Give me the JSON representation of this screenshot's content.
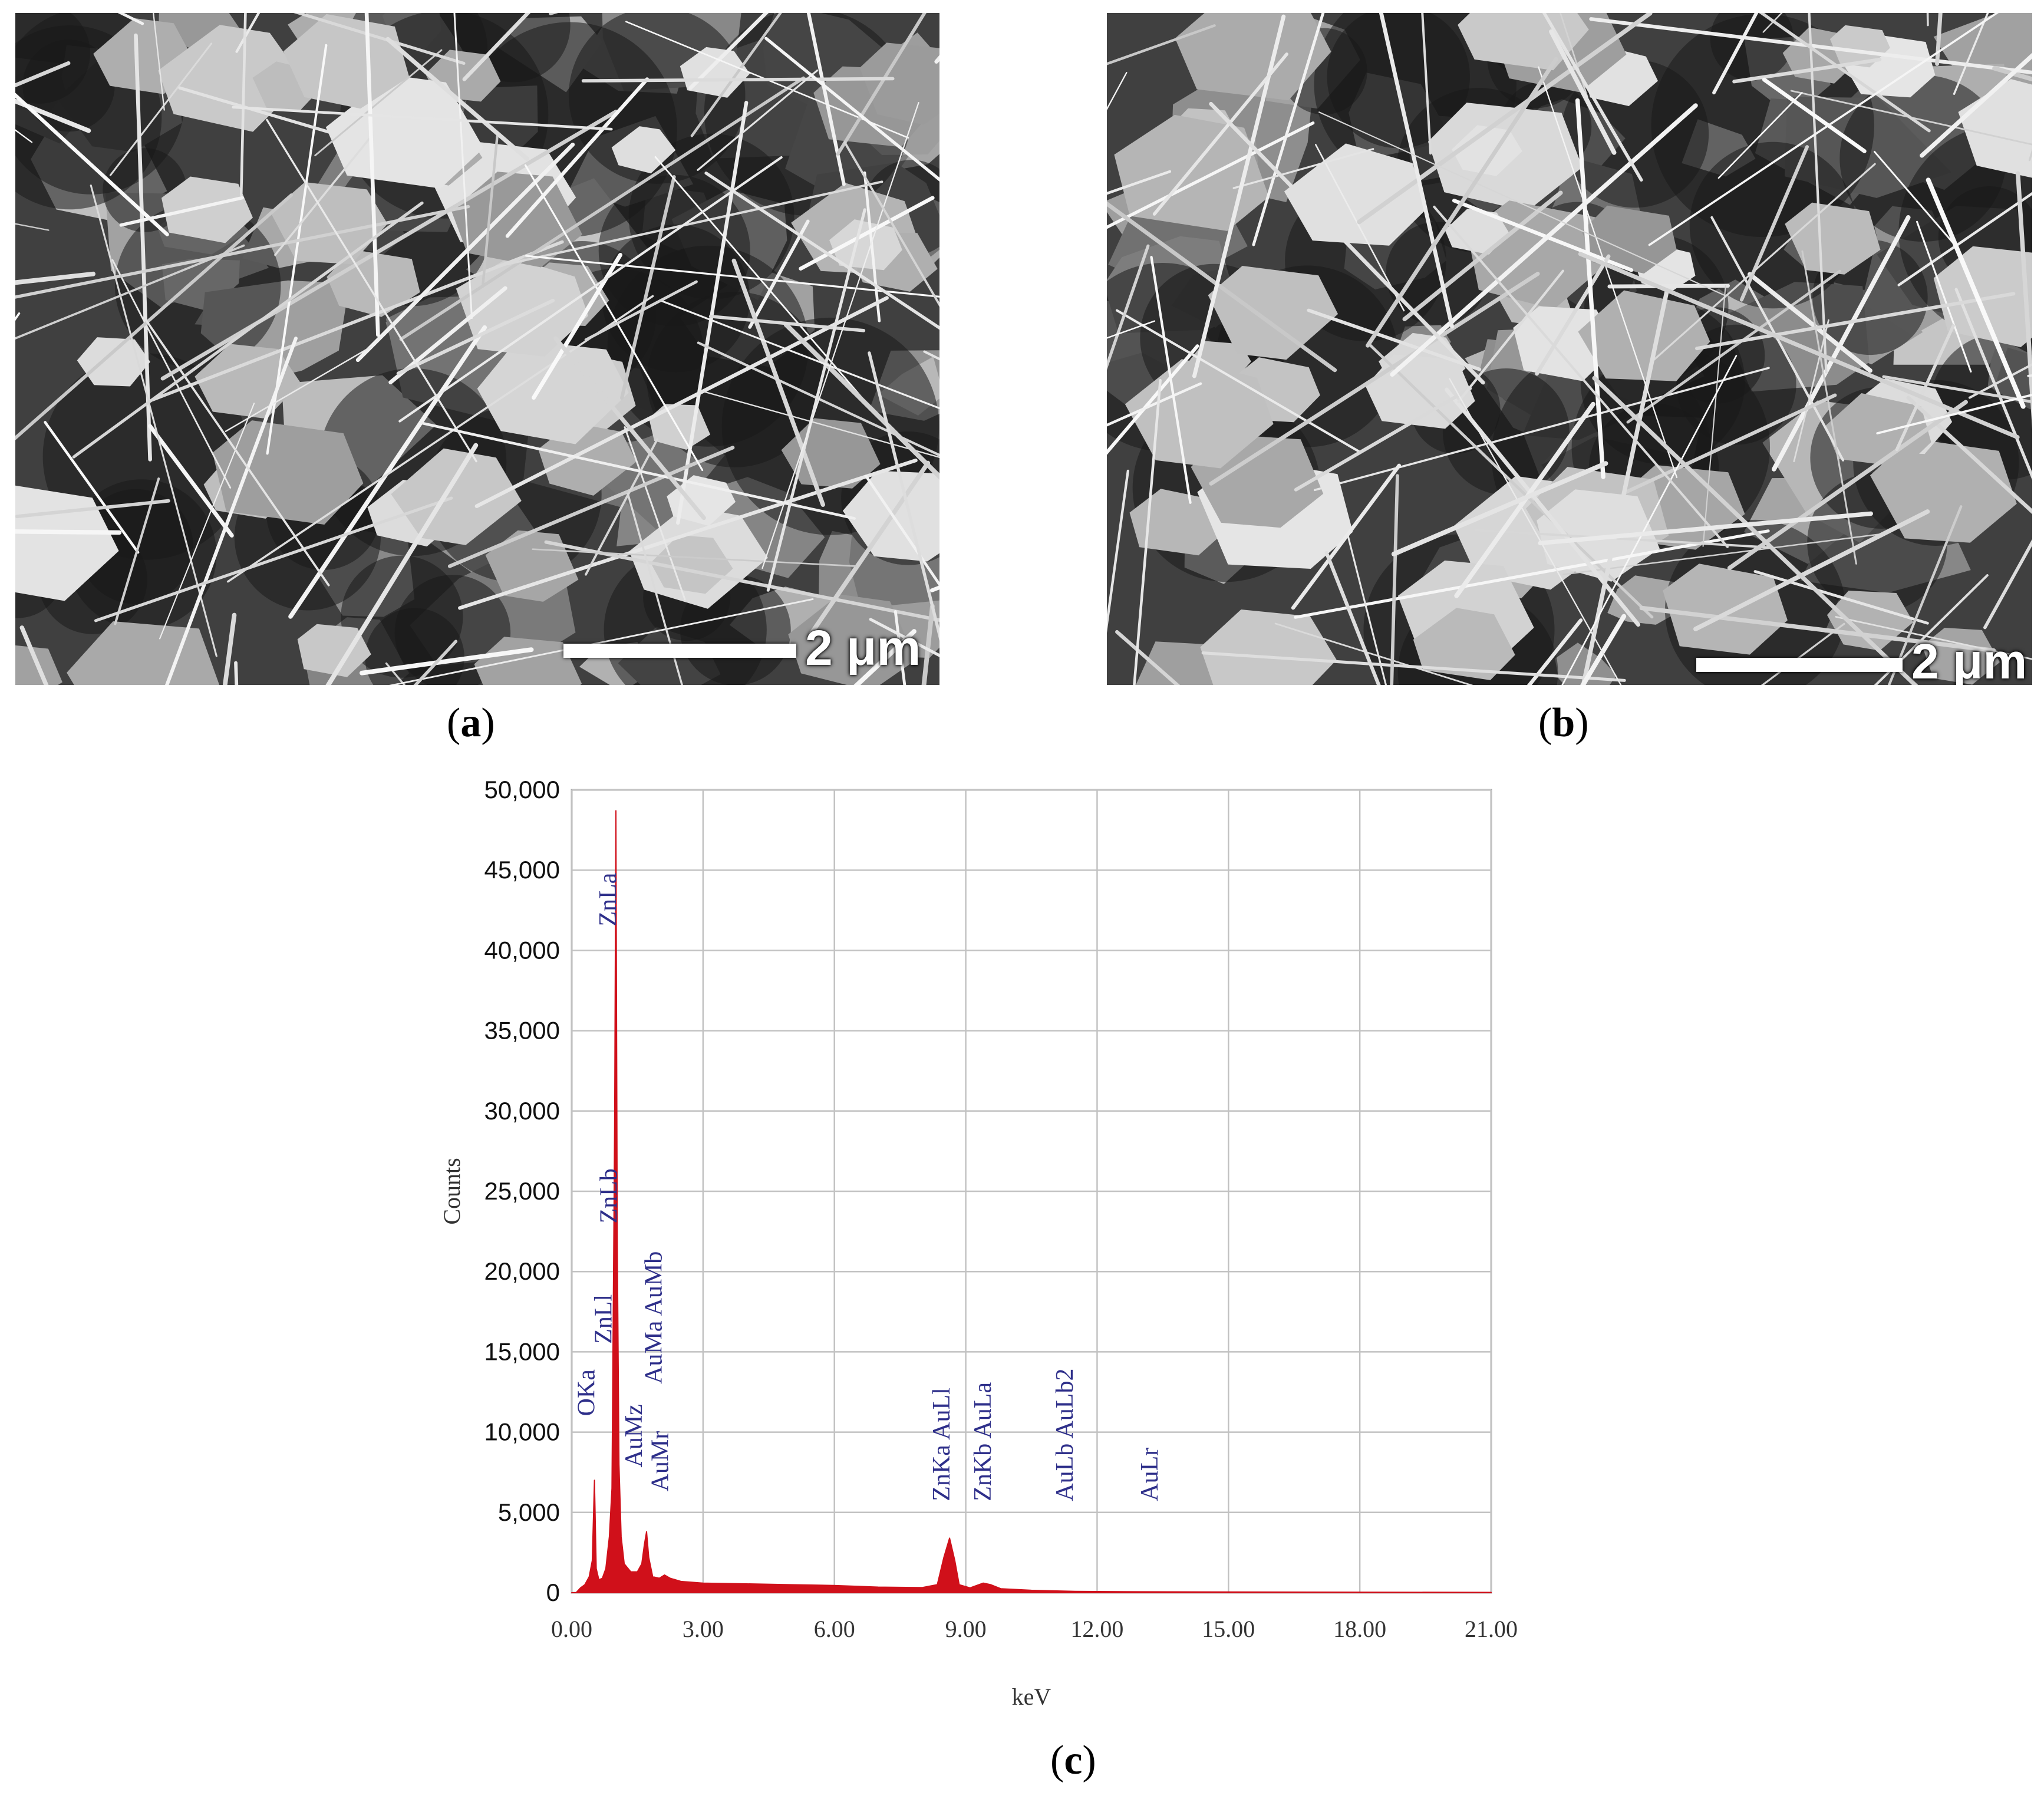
{
  "panels": [
    {
      "label_open": "(",
      "label_letter": "a",
      "label_close": ")",
      "scale_bar_text": "2 μm"
    },
    {
      "label_open": "(",
      "label_letter": "b",
      "label_close": ")",
      "scale_bar_text": "2 μm"
    },
    {
      "label_open": "(",
      "label_letter": "c",
      "label_close": ")"
    }
  ],
  "chart_data": {
    "type": "area",
    "xlabel": "keV",
    "ylabel": "Counts",
    "xlim": [
      0,
      21
    ],
    "ylim": [
      0,
      50000
    ],
    "grid": true,
    "x_ticks": [
      0,
      3,
      6,
      9,
      12,
      15,
      18,
      21
    ],
    "x_tick_labels": [
      "0.00",
      "3.00",
      "6.00",
      "9.00",
      "12.00",
      "15.00",
      "18.00",
      "21.00"
    ],
    "y_ticks": [
      0,
      5000,
      10000,
      15000,
      20000,
      25000,
      30000,
      35000,
      40000,
      45000,
      50000
    ],
    "y_tick_labels": [
      "0",
      "5,000",
      "10,000",
      "15,000",
      "20,000",
      "25,000",
      "30,000",
      "35,000",
      "40,000",
      "45,000",
      "50,000"
    ],
    "series_color": "#d0101a",
    "peak_label_color": "#2e2f8a",
    "spectrum": [
      [
        0.0,
        0
      ],
      [
        0.1,
        0
      ],
      [
        0.2,
        300
      ],
      [
        0.3,
        500
      ],
      [
        0.4,
        1000
      ],
      [
        0.47,
        2000
      ],
      [
        0.52,
        7000
      ],
      [
        0.56,
        1500
      ],
      [
        0.62,
        800
      ],
      [
        0.7,
        900
      ],
      [
        0.78,
        1500
      ],
      [
        0.86,
        3500
      ],
      [
        0.92,
        6500
      ],
      [
        0.98,
        29000
      ],
      [
        1.01,
        48700
      ],
      [
        1.04,
        22000
      ],
      [
        1.08,
        8000
      ],
      [
        1.13,
        3500
      ],
      [
        1.2,
        1800
      ],
      [
        1.35,
        1300
      ],
      [
        1.5,
        1300
      ],
      [
        1.6,
        1800
      ],
      [
        1.66,
        3000
      ],
      [
        1.71,
        3800
      ],
      [
        1.76,
        2200
      ],
      [
        1.85,
        1000
      ],
      [
        2.0,
        900
      ],
      [
        2.12,
        1100
      ],
      [
        2.25,
        900
      ],
      [
        2.5,
        700
      ],
      [
        3.0,
        600
      ],
      [
        4.0,
        550
      ],
      [
        5.0,
        500
      ],
      [
        6.0,
        450
      ],
      [
        7.0,
        350
      ],
      [
        8.0,
        320
      ],
      [
        8.35,
        500
      ],
      [
        8.5,
        2200
      ],
      [
        8.63,
        3400
      ],
      [
        8.75,
        2000
      ],
      [
        8.85,
        500
      ],
      [
        9.1,
        300
      ],
      [
        9.4,
        600
      ],
      [
        9.57,
        500
      ],
      [
        9.8,
        250
      ],
      [
        10.5,
        150
      ],
      [
        11.5,
        80
      ],
      [
        13.0,
        60
      ],
      [
        16.0,
        40
      ],
      [
        21.0,
        20
      ]
    ],
    "peak_labels": [
      {
        "text": "OKa",
        "x": 0.52,
        "y": 11000
      },
      {
        "text": "ZnLa",
        "x": 1.01,
        "y": 41500
      },
      {
        "text": "ZnLb",
        "x": 1.03,
        "y": 23000
      },
      {
        "text": "ZnLl",
        "x": 0.91,
        "y": 15500
      },
      {
        "text": "AuMz",
        "x": 1.6,
        "y": 7800
      },
      {
        "text": "AuMr",
        "x": 2.2,
        "y": 6300
      },
      {
        "text": "AuMa AuMb",
        "x": 2.05,
        "y": 13000
      },
      {
        "text": "ZnKa AuLl",
        "x": 8.63,
        "y": 5700
      },
      {
        "text": "ZnKb AuLa",
        "x": 9.57,
        "y": 5700
      },
      {
        "text": "AuLb AuLb2",
        "x": 11.44,
        "y": 5700
      },
      {
        "text": "AuLr",
        "x": 13.38,
        "y": 5700
      }
    ]
  }
}
